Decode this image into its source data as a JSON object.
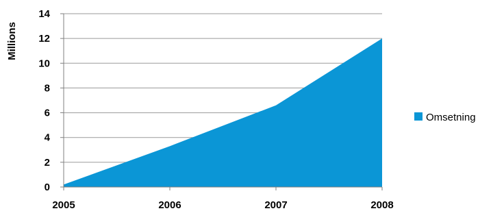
{
  "chart_data": {
    "type": "area",
    "x": [
      "2005",
      "2006",
      "2007",
      "2008"
    ],
    "series": [
      {
        "name": "Omsetning",
        "values": [
          0.2,
          3.3,
          6.6,
          12.0
        ]
      }
    ],
    "ylabel": "Millions",
    "xlabel": "",
    "title": "",
    "ylim": [
      0,
      14
    ],
    "yticks": [
      "0",
      "2",
      "4",
      "6",
      "8",
      "10",
      "12",
      "14"
    ],
    "grid": true,
    "legend_position": "right",
    "colors": {
      "series": "#0b96d6",
      "grid": "#9a9a9a",
      "axis": "#7f7f7f"
    }
  }
}
